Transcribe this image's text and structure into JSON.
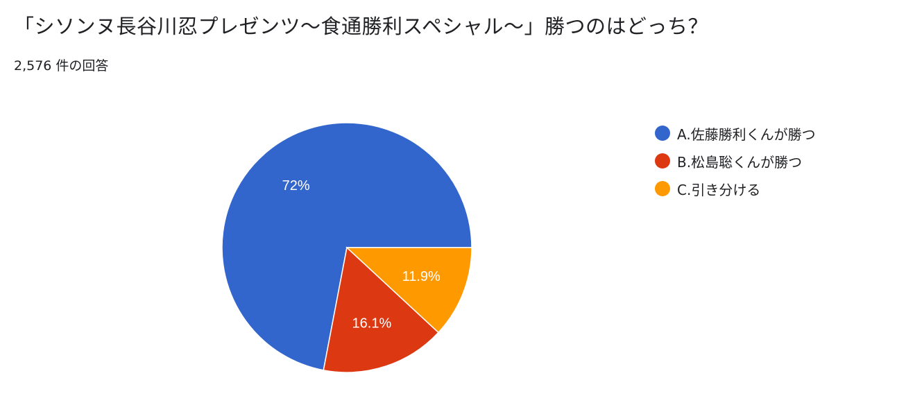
{
  "header": {
    "title": "「シソンヌ長谷川忍プレゼンツ〜食通勝利スペシャル〜」勝つのはどっち？",
    "response_count": "2,576 件の回答"
  },
  "chart_data": {
    "type": "pie",
    "categories": [
      "A.佐藤勝利くんが勝つ",
      "B.松島聡くんが勝つ",
      "C.引き分ける"
    ],
    "values": [
      72,
      16.1,
      11.9
    ],
    "labels": [
      "72%",
      "16.1%",
      "11.9%"
    ],
    "colors": [
      "#3366cc",
      "#dc3912",
      "#ff9900"
    ],
    "start": "3 o'clock, counter-clockwise",
    "legend_position": "right"
  }
}
